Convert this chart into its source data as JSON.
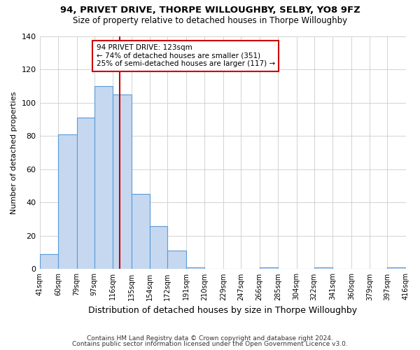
{
  "title": "94, PRIVET DRIVE, THORPE WILLOUGHBY, SELBY, YO8 9FZ",
  "subtitle": "Size of property relative to detached houses in Thorpe Willoughby",
  "xlabel": "Distribution of detached houses by size in Thorpe Willoughby",
  "ylabel": "Number of detached properties",
  "bin_edges": [
    41,
    60,
    79,
    97,
    116,
    135,
    154,
    172,
    191,
    210,
    229,
    247,
    266,
    285,
    304,
    322,
    341,
    360,
    379,
    397,
    416
  ],
  "bin_labels": [
    "41sqm",
    "60sqm",
    "79sqm",
    "97sqm",
    "116sqm",
    "135sqm",
    "154sqm",
    "172sqm",
    "191sqm",
    "210sqm",
    "229sqm",
    "247sqm",
    "266sqm",
    "285sqm",
    "304sqm",
    "322sqm",
    "341sqm",
    "360sqm",
    "379sqm",
    "397sqm",
    "416sqm"
  ],
  "counts": [
    9,
    81,
    91,
    110,
    105,
    45,
    26,
    11,
    1,
    0,
    0,
    0,
    1,
    0,
    0,
    1,
    0,
    0,
    0,
    1
  ],
  "bar_color": "#c5d8f0",
  "bar_edge_color": "#5a9ad5",
  "reference_line_x": 123,
  "reference_line_color": "#cc0000",
  "annotation_title": "94 PRIVET DRIVE: 123sqm",
  "annotation_line1": "← 74% of detached houses are smaller (351)",
  "annotation_line2": "25% of semi-detached houses are larger (117) →",
  "annotation_box_edge_color": "#cc0000",
  "annotation_box_bg": "#ffffff",
  "ylim": [
    0,
    140
  ],
  "yticks": [
    0,
    20,
    40,
    60,
    80,
    100,
    120,
    140
  ],
  "background_color": "#ffffff",
  "grid_color": "#cccccc",
  "footer_line1": "Contains HM Land Registry data © Crown copyright and database right 2024.",
  "footer_line2": "Contains public sector information licensed under the Open Government Licence v3.0."
}
